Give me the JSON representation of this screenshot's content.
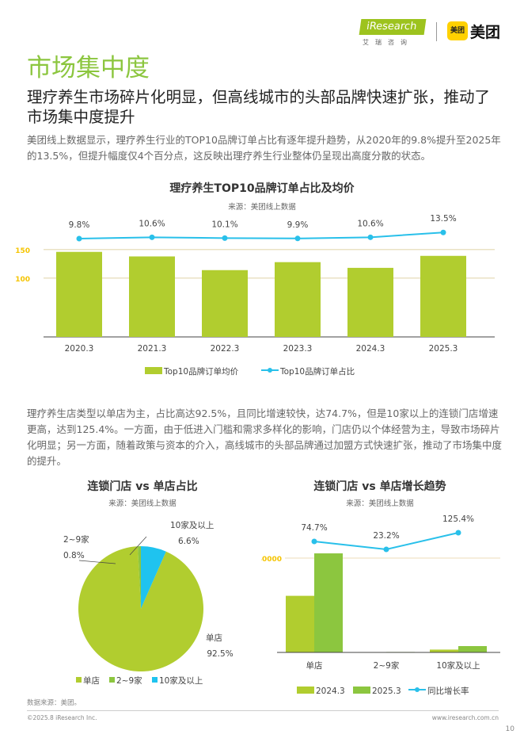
{
  "header": {
    "ir_logo": "iResearch",
    "ir_sub": "艾瑞咨询",
    "mt_box": "美团",
    "mt_text": "美团"
  },
  "title": "市场集中度",
  "subtitle": "理疗养生市场碎片化明显，但高线城市的头部品牌快速扩张，推动了市场集中度提升",
  "para1": "美团线上数据显示，理疗养生行业的TOP10品牌订单占比有逐年提升趋势，从2020年的9.8%提升至2025年的13.5%，但提升幅度仅4个百分点，这反映出理疗养生行业整体仍呈现出高度分散的状态。",
  "para2": "理疗养生店类型以单店为主，占比高达92.5%，且同比增速较快，达74.7%，但是10家以上的连锁门店增速更高，达到125.4%。一方面，由于低进入门槛和需求多样化的影响，门店仍以个体经营为主，导致市场碎片化明显；另一方面，随着政策与资本的介入，高线城市的头部品牌通过加盟方式快速扩张，推动了市场集中度的提升。",
  "chart_data": [
    {
      "type": "bar+line",
      "title": "理疗养生TOP10品牌订单占比及均价",
      "source": "来源：美团线上数据",
      "categories": [
        "2020.3",
        "2021.3",
        "2022.3",
        "2023.3",
        "2024.3",
        "2025.3"
      ],
      "yticks": [
        "100",
        "150"
      ],
      "series": [
        {
          "name": "Top10品牌订单均价",
          "type": "bar",
          "values": [
            146,
            138,
            114,
            128,
            118,
            139
          ],
          "color": "#b1cd2f"
        },
        {
          "name": "Top10品牌订单占比",
          "type": "line",
          "values": [
            9.8,
            10.6,
            10.1,
            9.9,
            10.6,
            13.5
          ],
          "labels": [
            "9.8%",
            "10.6%",
            "10.1%",
            "9.9%",
            "10.6%",
            "13.5%"
          ],
          "color": "#29c0ea"
        }
      ]
    },
    {
      "type": "pie",
      "title": "连锁门店 vs 单店占比",
      "source": "来源：美团线上数据",
      "slices": [
        {
          "name": "单店",
          "value": 92.5,
          "label": "92.5%",
          "color": "#b1cd2f"
        },
        {
          "name": "2~9家",
          "value": 0.8,
          "label": "0.8%",
          "color": "#8cc63f"
        },
        {
          "name": "10家及以上",
          "value": 6.6,
          "label": "6.6%",
          "color": "#1fc3ef"
        }
      ]
    },
    {
      "type": "bar+line",
      "title": "连锁门店 vs 单店增长趋势",
      "source": "来源：美团线上数据",
      "categories": [
        "单店",
        "2~9家",
        "10家及以上"
      ],
      "yticks": [
        "140000"
      ],
      "series": [
        {
          "name": "2024.3",
          "type": "bar",
          "values": [
            84000,
            600,
            4200
          ],
          "color": "#b1cd2f"
        },
        {
          "name": "2025.3",
          "type": "bar",
          "values": [
            147000,
            700,
            9400
          ],
          "color": "#8cc63f"
        },
        {
          "name": "同比增长率",
          "type": "line",
          "values": [
            74.7,
            23.2,
            125.4
          ],
          "labels": [
            "74.7%",
            "23.2%",
            "125.4%"
          ],
          "color": "#29c0ea"
        }
      ]
    }
  ],
  "footer": {
    "source": "数据来源：美团。",
    "copyright": "©2025.8 iResearch Inc.",
    "url": "www.iresearch.com.cn",
    "page": "10"
  }
}
